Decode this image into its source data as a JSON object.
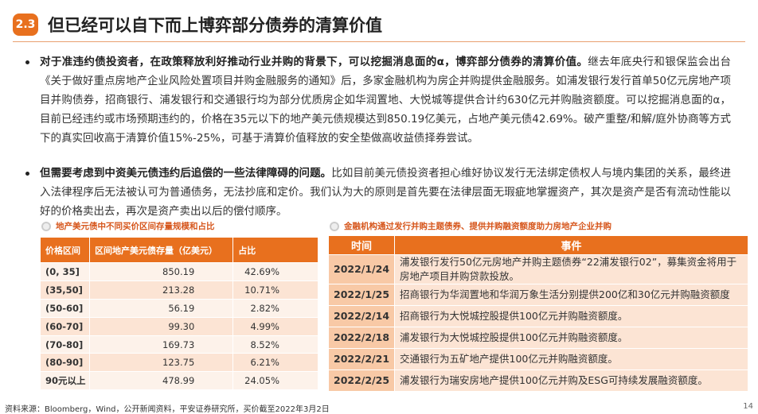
{
  "header": {
    "number": "2.3",
    "title": "但已经可以自下而上博弈部分债券的清算价值"
  },
  "bullets": [
    {
      "lead": "对于准违约债投资者，在政策释放利好推动行业并购的背景下，可以挖掘消息面的α，博弈部分债券的清算价值。",
      "text": "继去年底央行和银保监会出台《关于做好重点房地产企业风险处置项目并购金融服务的通知》后，多家金融机构为房企并购提供金融服务。如浦发银行发行首单50亿元房地产项目并购债券，招商银行、浦发银行和交通银行均为部分优质房企如华润置地、大悦城等提供合计约630亿元并购融资额度。可以挖掘消息面的α，目前已经违约或市场预期违约的，价格在35元以下的地产美元债规模达到850.19亿美元，占地产美元债42.69%。破产重整/和解/庭外协商等方式下的真实回收高于清算价值15%-25%，可基于清算价值释放的安全垫做高收益债择券尝试。"
    },
    {
      "lead": "但需要考虑到中资美元债违约后追偿的一些法律障碍的问题。",
      "text": "比如目前美元债投资者担心维好协议发行无法绑定债权人与境内集团的关系，最终进入法律程序后无法被认可为普通债务，无法抄底和定价。我们认为大的原则是首先要在法律层面无瑕疵地掌握资产，其次是资产是否有流动性能以好的价格卖出去，再次是资产卖出以后的偿付顺序。"
    }
  ],
  "left_table": {
    "title": "地产美元债中不同买价区间存量规模和占比",
    "columns": [
      "价格区间",
      "区间地产美元债存量（亿美元）",
      "占比"
    ],
    "rows": [
      [
        "(0, 35]",
        "850.19",
        "42.69%"
      ],
      [
        "(35,50]",
        "213.28",
        "10.71%"
      ],
      [
        "(50-60]",
        "56.19",
        "2.82%"
      ],
      [
        "(60-70]",
        "99.30",
        "4.99%"
      ],
      [
        "(70-80]",
        "169.73",
        "8.52%"
      ],
      [
        "(80-90]",
        "123.75",
        "6.21%"
      ],
      [
        "90元以上",
        "478.99",
        "24.05%"
      ]
    ]
  },
  "right_table": {
    "title": "金融机构通过发行并购主题债券、提供并购融资额度助力房地产企业并购",
    "columns": [
      "时间",
      "事件"
    ],
    "rows": [
      [
        "2022/1/24",
        "浦发银行发行50亿元房地产并购主题债券“22浦发银行02”，募集资金将用于房地产项目并购贷款投放。"
      ],
      [
        "2022/1/25",
        "招商银行为华润置地和华润万象生活分别提供200亿和30亿元并购融资额度"
      ],
      [
        "2022/2/14",
        "招商银行为大悦城控股提供100亿元并购融资额度。"
      ],
      [
        "2022/2/18",
        "浦发银行为大悦城控股提供100亿元并购融资额度。"
      ],
      [
        "2022/2/21",
        "交通银行为五矿地产提供100亿元并购融资额度。"
      ],
      [
        "2022/2/25",
        "浦发银行为瑞安房地产提供100亿元并购及ESG可持续发展融资额度。"
      ]
    ]
  },
  "source": "资料来源：Bloomberg，Wind，公开新闻资料，平安证券研究所，买价截至2022年3月2日",
  "page": "14"
}
